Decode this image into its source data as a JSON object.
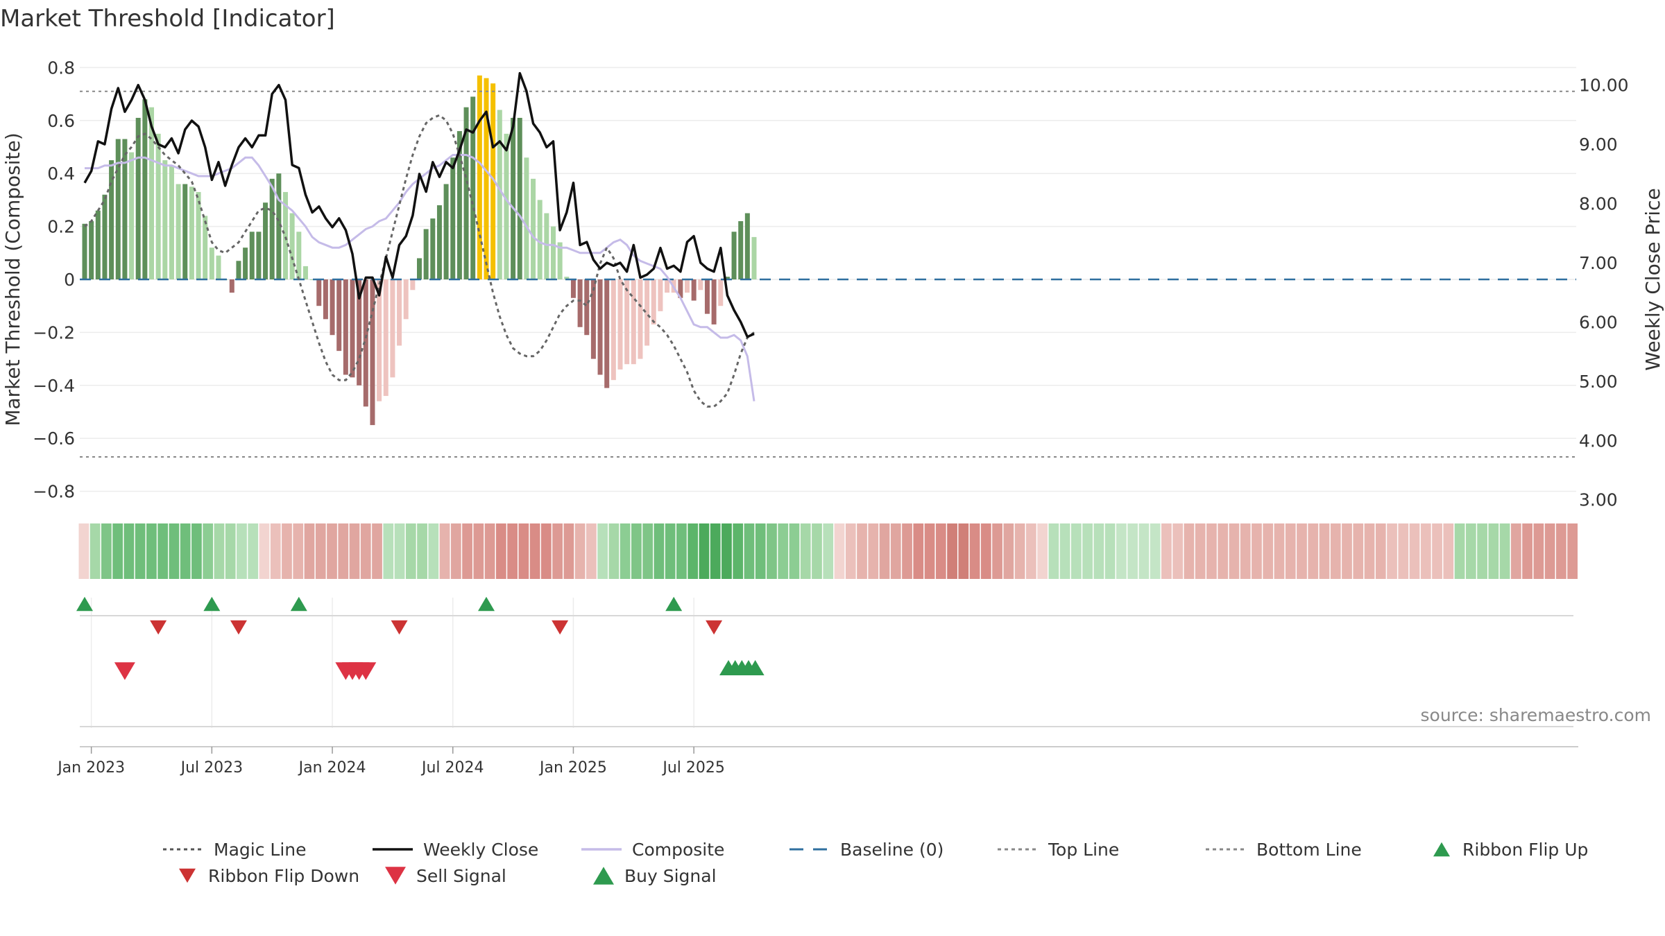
{
  "chart_data": {
    "type": "bar",
    "title": "Market Threshold [Indicator]",
    "ylabel_left": "Market Threshold (Composite)",
    "ylabel_right": "Weekly Close Price",
    "source": "source: sharemaestro.com",
    "y_left_ticks": [
      "0.8",
      "0.6",
      "0.4",
      "0.2",
      "0",
      "−0.2",
      "−0.4",
      "−0.6",
      "−0.8"
    ],
    "y_left_tick_values": [
      0.8,
      0.6,
      0.4,
      0.2,
      0,
      -0.2,
      -0.4,
      -0.6,
      -0.8
    ],
    "y_right_ticks": [
      "10.00",
      "9.00",
      "8.00",
      "7.00",
      "6.00",
      "5.00",
      "4.00",
      "3.00"
    ],
    "y_right_tick_values": [
      10,
      9,
      8,
      7,
      6,
      5,
      4,
      3
    ],
    "ylim_left": [
      -0.84,
      0.84
    ],
    "ylim_right": [
      2.95,
      10.5
    ],
    "x_ticks": [
      "Jan 2023",
      "Jul 2023",
      "Jan 2024",
      "Jul 2024",
      "Jan 2025",
      "Jul 2025"
    ],
    "x_tick_week_index": [
      1,
      19,
      37,
      55,
      73,
      91
    ],
    "top_line": 0.71,
    "bottom_line": -0.67,
    "weeks": 101,
    "composite_bars": [
      0.21,
      0.22,
      0.26,
      0.32,
      0.45,
      0.53,
      0.53,
      0.48,
      0.61,
      0.68,
      0.65,
      0.55,
      0.45,
      0.43,
      0.36,
      0.36,
      0.35,
      0.33,
      0.24,
      0.12,
      0.09,
      0.0,
      -0.05,
      0.07,
      0.12,
      0.18,
      0.18,
      0.29,
      0.38,
      0.4,
      0.33,
      0.25,
      0.18,
      0.05,
      0.0,
      -0.1,
      -0.15,
      -0.21,
      -0.27,
      -0.36,
      -0.37,
      -0.4,
      -0.48,
      -0.55,
      -0.46,
      -0.44,
      -0.37,
      -0.25,
      -0.15,
      -0.04,
      0.08,
      0.19,
      0.23,
      0.28,
      0.36,
      0.46,
      0.56,
      0.65,
      0.69,
      0.77,
      0.76,
      0.74,
      0.64,
      0.55,
      0.61,
      0.61,
      0.46,
      0.38,
      0.3,
      0.25,
      0.2,
      0.14,
      0.01,
      -0.07,
      -0.18,
      -0.21,
      -0.3,
      -0.36,
      -0.41,
      -0.38,
      -0.34,
      -0.32,
      -0.32,
      -0.3,
      -0.25,
      -0.17,
      -0.12,
      -0.05,
      -0.05,
      -0.07,
      -0.05,
      -0.08,
      -0.04,
      -0.13,
      -0.17,
      -0.1,
      0.01,
      0.18,
      0.22,
      0.25,
      0.16
    ],
    "weekly_close": [
      8.35,
      8.55,
      9.05,
      9.0,
      9.6,
      9.95,
      9.55,
      9.75,
      10.0,
      9.75,
      9.3,
      9.0,
      8.95,
      9.1,
      8.85,
      9.25,
      9.4,
      9.3,
      8.95,
      8.4,
      8.7,
      8.3,
      8.65,
      8.95,
      9.1,
      8.95,
      9.15,
      9.15,
      9.85,
      10.0,
      9.75,
      8.65,
      8.6,
      8.15,
      7.85,
      7.95,
      7.75,
      7.6,
      7.75,
      7.55,
      7.15,
      6.4,
      6.75,
      6.75,
      6.45,
      7.1,
      6.75,
      7.3,
      7.45,
      7.8,
      8.5,
      8.2,
      8.7,
      8.45,
      8.7,
      8.6,
      8.9,
      9.25,
      9.2,
      9.4,
      9.55,
      8.95,
      9.05,
      8.9,
      9.3,
      10.2,
      9.9,
      9.35,
      9.2,
      8.95,
      9.05,
      7.55,
      7.85,
      8.35,
      7.3,
      7.35,
      7.05,
      6.9,
      7.0,
      6.95,
      7.0,
      6.85,
      7.3,
      6.75,
      6.8,
      6.9,
      7.25,
      6.9,
      6.95,
      6.85,
      7.35,
      7.45,
      7.0,
      6.9,
      6.85,
      7.25,
      6.45,
      6.2,
      6.0,
      5.75,
      5.8
    ],
    "magic_line": [
      0.2,
      0.22,
      0.26,
      0.3,
      0.37,
      0.42,
      0.47,
      0.5,
      0.54,
      0.55,
      0.53,
      0.5,
      0.47,
      0.45,
      0.43,
      0.4,
      0.37,
      0.3,
      0.22,
      0.14,
      0.11,
      0.1,
      0.12,
      0.14,
      0.18,
      0.22,
      0.26,
      0.27,
      0.26,
      0.22,
      0.16,
      0.08,
      0.0,
      -0.08,
      -0.16,
      -0.24,
      -0.31,
      -0.36,
      -0.38,
      -0.38,
      -0.35,
      -0.3,
      -0.22,
      -0.12,
      -0.02,
      0.08,
      0.18,
      0.28,
      0.38,
      0.47,
      0.54,
      0.59,
      0.61,
      0.62,
      0.6,
      0.55,
      0.47,
      0.38,
      0.28,
      0.17,
      0.06,
      -0.05,
      -0.14,
      -0.21,
      -0.26,
      -0.28,
      -0.29,
      -0.29,
      -0.27,
      -0.23,
      -0.18,
      -0.13,
      -0.1,
      -0.08,
      -0.08,
      -0.1,
      -0.04,
      0.06,
      0.12,
      0.08,
      0.0,
      -0.04,
      -0.07,
      -0.1,
      -0.13,
      -0.16,
      -0.18,
      -0.21,
      -0.25,
      -0.3,
      -0.35,
      -0.42,
      -0.46,
      -0.48,
      -0.48,
      -0.46,
      -0.43,
      -0.36,
      -0.28,
      -0.22,
      -0.2
    ],
    "composite_line": [
      0.42,
      0.42,
      0.42,
      0.43,
      0.43,
      0.44,
      0.44,
      0.45,
      0.46,
      0.46,
      0.45,
      0.44,
      0.43,
      0.43,
      0.42,
      0.41,
      0.4,
      0.39,
      0.39,
      0.39,
      0.4,
      0.41,
      0.42,
      0.44,
      0.46,
      0.46,
      0.43,
      0.39,
      0.35,
      0.3,
      0.28,
      0.26,
      0.23,
      0.2,
      0.16,
      0.14,
      0.13,
      0.12,
      0.12,
      0.13,
      0.15,
      0.17,
      0.19,
      0.2,
      0.22,
      0.23,
      0.26,
      0.29,
      0.33,
      0.36,
      0.38,
      0.4,
      0.42,
      0.43,
      0.45,
      0.47,
      0.47,
      0.47,
      0.46,
      0.44,
      0.41,
      0.38,
      0.34,
      0.3,
      0.27,
      0.24,
      0.2,
      0.16,
      0.14,
      0.13,
      0.13,
      0.12,
      0.12,
      0.11,
      0.1,
      0.1,
      0.1,
      0.1,
      0.12,
      0.14,
      0.15,
      0.13,
      0.09,
      0.07,
      0.06,
      0.05,
      0.04,
      0.01,
      -0.03,
      -0.07,
      -0.12,
      -0.17,
      -0.18,
      -0.18,
      -0.2,
      -0.22,
      -0.22,
      -0.21,
      -0.23,
      -0.29,
      -0.46
    ],
    "ribbon_colors": [
      "#f2d4d0",
      "#a6d8a8",
      "#7fc587",
      "#6fbe7b",
      "#6fbe7b",
      "#6fbe7b",
      "#6fbe7b",
      "#6fbe7b",
      "#6fbe7b",
      "#6fbe7b",
      "#6fbe7b",
      "#8ccd93",
      "#a6d8a8",
      "#a6d8a8",
      "#b7e0ba",
      "#b7e0ba",
      "#f2d4d0",
      "#ebc0bb",
      "#e6b3ad",
      "#e6b3ad",
      "#e0a6a0",
      "#e0a6a0",
      "#e0a6a0",
      "#e0a6a0",
      "#e0a6a0",
      "#e0a6a0",
      "#e0a6a0",
      "#b7e0ba",
      "#b7e0ba",
      "#a6d8a8",
      "#a6d8a8",
      "#b7e0ba",
      "#e6b3ad",
      "#e0a6a0",
      "#dd9a94",
      "#dd9a94",
      "#dd9a94",
      "#d98c86",
      "#d98c86",
      "#d98c86",
      "#d98c86",
      "#d98c86",
      "#dd9a94",
      "#dd9a94",
      "#e6b3ad",
      "#ebc0bb",
      "#b7e0ba",
      "#a6d8a8",
      "#8ccd93",
      "#7fc587",
      "#7fc587",
      "#6fbe7b",
      "#6fbe7b",
      "#6fbe7b",
      "#5cb56a",
      "#4caa5c",
      "#4caa5c",
      "#4caa5c",
      "#5cb56a",
      "#6fbe7b",
      "#6fbe7b",
      "#7fc587",
      "#8ccd93",
      "#8ccd93",
      "#a6d8a8",
      "#a6d8a8",
      "#b7e0ba",
      "#f2d4d0",
      "#ebc0bb",
      "#e6b3ad",
      "#e6b3ad",
      "#e0a6a0",
      "#e0a6a0",
      "#dd9a94",
      "#d98c86",
      "#d98c86",
      "#d98c86",
      "#d07f78",
      "#d07f78",
      "#d98c86",
      "#d98c86",
      "#dd9a94",
      "#e0a6a0",
      "#e6b3ad",
      "#ebc0bb",
      "#f2d4d0",
      "#b7e0ba",
      "#b7e0ba",
      "#b7e0ba",
      "#b7e0ba",
      "#b7e0ba",
      "#b7e0ba",
      "#c4e5c6",
      "#c4e5c6",
      "#c4e5c6",
      "#c4e5c6",
      "#ebc0bb",
      "#ebc0bb",
      "#e6b3ad",
      "#e6b3ad",
      "#e6b3ad",
      "#e6b3ad",
      "#e6b3ad",
      "#e6b3ad",
      "#e6b3ad",
      "#e6b3ad",
      "#e6b3ad",
      "#e6b3ad",
      "#e6b3ad",
      "#e6b3ad",
      "#e6b3ad",
      "#e6b3ad",
      "#e6b3ad",
      "#e6b3ad",
      "#e6b3ad",
      "#e6b3ad",
      "#ebc0bb",
      "#ebc0bb",
      "#ebc0bb",
      "#ebc0bb",
      "#ebc0bb",
      "#ebc0bb",
      "#a6d8a8",
      "#a6d8a8",
      "#a6d8a8",
      "#a6d8a8",
      "#a6d8a8",
      "#e0a6a0",
      "#dd9a94",
      "#dd9a94",
      "#dd9a94",
      "#dd9a94",
      "#dd9a94"
    ],
    "ribbon_flip_up_weeks": [
      0,
      19,
      32,
      60,
      88
    ],
    "ribbon_flip_down_weeks": [
      11,
      23,
      47,
      71,
      94
    ],
    "sell_signal_weeks": [
      6,
      39,
      40,
      41,
      42
    ],
    "buy_signal_weeks": [
      97,
      98,
      99,
      100,
      101
    ],
    "legend": [
      {
        "label": "Magic Line",
        "style": "dotted",
        "color": "#555555"
      },
      {
        "label": "Weekly Close",
        "style": "solid",
        "color": "#111111"
      },
      {
        "label": "Composite",
        "style": "solid",
        "color": "#c5bbe8"
      },
      {
        "label": "Baseline (0)",
        "style": "dashed",
        "color": "#2f6f9f"
      },
      {
        "label": "Top Line",
        "style": "dotted",
        "color": "#888888"
      },
      {
        "label": "Bottom Line",
        "style": "dotted",
        "color": "#888888"
      },
      {
        "label": "Ribbon Flip Up",
        "style": "tri-up",
        "color": "#2e9a4f"
      },
      {
        "label": "Ribbon Flip Down",
        "style": "tri-down",
        "color": "#cc3333"
      },
      {
        "label": "Sell Signal",
        "style": "tri-down-large",
        "color": "#dd3344"
      },
      {
        "label": "Buy Signal",
        "style": "tri-up-large",
        "color": "#2e9a4f"
      }
    ],
    "colors": {
      "bar_pos_dark": "#5e8f5a",
      "bar_pos_light": "#abd6a5",
      "bar_neg_dark": "#a66b6b",
      "bar_neg_light": "#eec3bf",
      "extreme": "#f5c000",
      "weekly_close": "#111111",
      "composite": "#c5bbe8",
      "magic": "#666666",
      "baseline": "#2f6f9f"
    }
  }
}
